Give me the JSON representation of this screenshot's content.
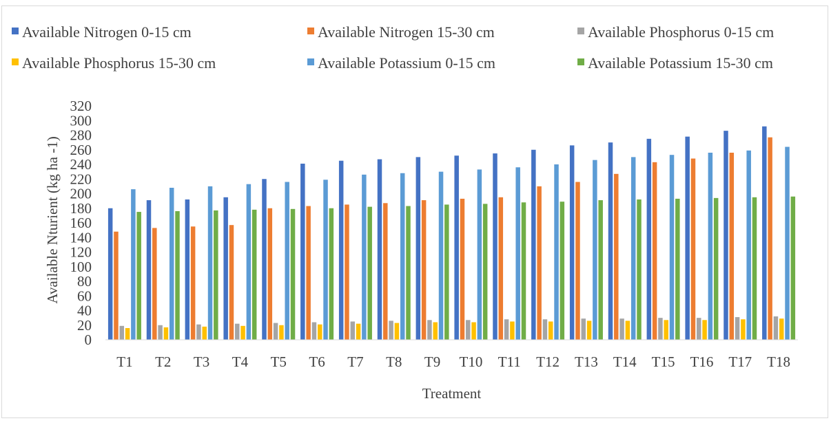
{
  "chart_data": {
    "type": "bar",
    "title": "",
    "xlabel": "Treatment",
    "ylabel": "Available Nturient (kg ha -1)",
    "ylim": [
      0,
      320
    ],
    "yticks": [
      0,
      20,
      40,
      60,
      80,
      100,
      120,
      140,
      160,
      180,
      200,
      220,
      240,
      260,
      280,
      300,
      320
    ],
    "grid": false,
    "legend_position": "top",
    "categories": [
      "T1",
      "T2",
      "T3",
      "T4",
      "T5",
      "T6",
      "T7",
      "T8",
      "T9",
      "T10",
      "T11",
      "T12",
      "T13",
      "T14",
      "T15",
      "T16",
      "T17",
      "T18"
    ],
    "series": [
      {
        "name": "Available Nitrogen 0-15 cm",
        "color": "#4472c4",
        "values": [
          180,
          191,
          192,
          195,
          220,
          241,
          245,
          247,
          250,
          252,
          255,
          260,
          266,
          270,
          275,
          278,
          286,
          292
        ]
      },
      {
        "name": "Available Nitrogen 15-30 cm",
        "color": "#ed7d31",
        "values": [
          148,
          153,
          155,
          157,
          180,
          183,
          185,
          187,
          191,
          193,
          195,
          210,
          216,
          227,
          243,
          248,
          256,
          277
        ]
      },
      {
        "name": "Available Phosphorus 0-15 cm",
        "color": "#a5a5a5",
        "values": [
          19,
          20,
          21,
          22,
          23,
          24,
          25,
          26,
          27,
          27,
          28,
          28,
          29,
          29,
          30,
          30,
          31,
          32
        ]
      },
      {
        "name": "Available Phosphorus 15-30 cm",
        "color": "#ffc000",
        "values": [
          16,
          17,
          18,
          19,
          20,
          21,
          22,
          23,
          24,
          24,
          25,
          25,
          26,
          26,
          27,
          27,
          28,
          29
        ]
      },
      {
        "name": "Available Potassium 0-15 cm",
        "color": "#5b9bd5",
        "values": [
          206,
          208,
          210,
          213,
          216,
          219,
          226,
          228,
          230,
          233,
          236,
          240,
          246,
          250,
          253,
          256,
          259,
          264
        ]
      },
      {
        "name": "Available Potassium 15-30 cm",
        "color": "#70ad47",
        "values": [
          175,
          176,
          177,
          178,
          179,
          180,
          182,
          183,
          185,
          186,
          188,
          189,
          191,
          192,
          193,
          194,
          195,
          196
        ]
      }
    ]
  }
}
